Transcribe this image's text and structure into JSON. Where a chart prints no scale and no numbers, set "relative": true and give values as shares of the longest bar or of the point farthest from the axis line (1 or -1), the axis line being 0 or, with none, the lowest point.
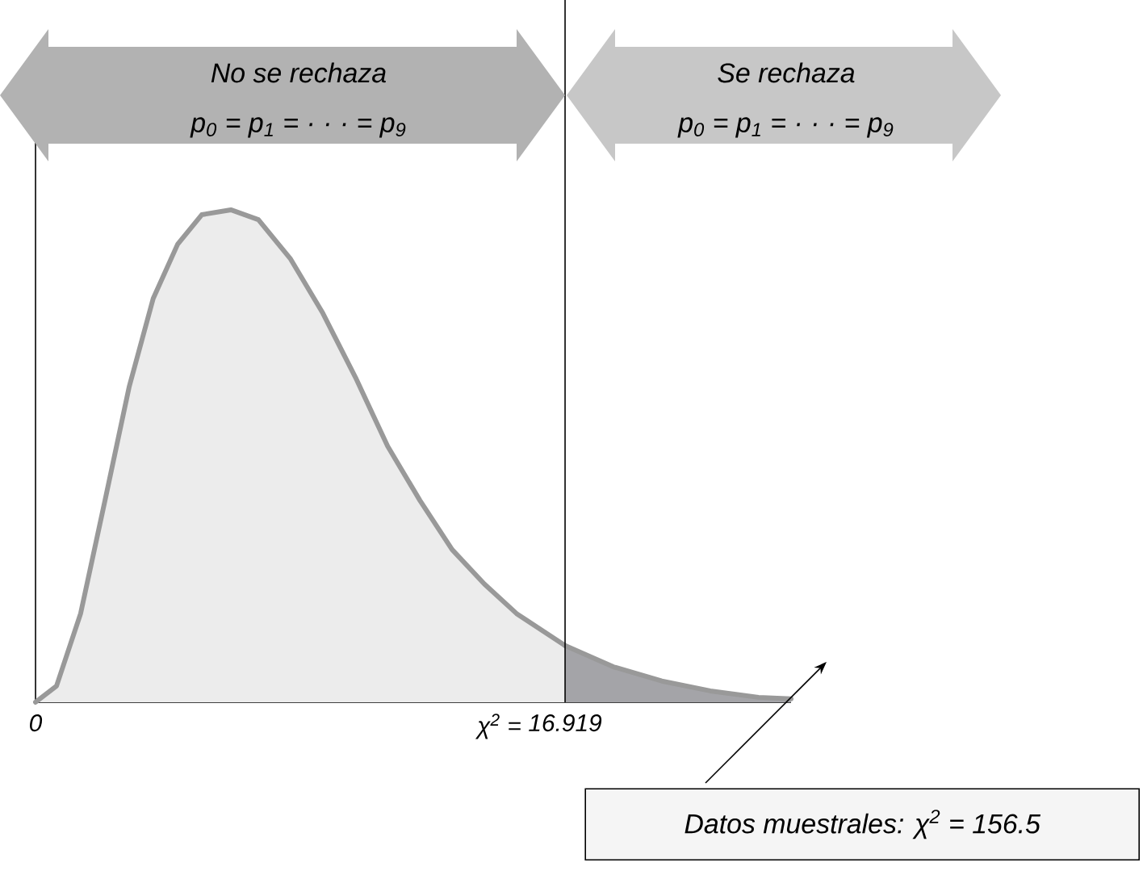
{
  "chart_data": {
    "type": "area",
    "relative": true,
    "series": [
      {
        "color": "#ececec",
        "x": [
          0,
          0.67,
          1.44,
          2.22,
          2.99,
          3.76,
          4.54,
          5.31,
          6.24,
          7.12,
          8.15,
          9.18,
          10.22,
          11.25,
          12.28,
          13.31,
          14.34,
          15.37,
          16.919
        ],
        "values": [
          0,
          0.033,
          0.18,
          0.41,
          0.64,
          0.82,
          0.93,
          0.99,
          1,
          0.98,
          0.9,
          0.79,
          0.66,
          0.52,
          0.41,
          0.31,
          0.24,
          0.18,
          0.115
        ]
      },
      {
        "color": "#a4a4a8",
        "x": [
          16.919,
          18.46,
          20.01,
          21.56,
          23.1,
          24.14
        ],
        "values": [
          0.115,
          0.072,
          0.043,
          0.023,
          0.01,
          0.007
        ]
      }
    ],
    "xlim": [
      0,
      24.14
    ],
    "xticks": [
      0,
      16.919
    ],
    "tick_labels": "x",
    "ref_lines": [
      {
        "axis": "x",
        "value": 16.919,
        "label": "χ$^{2}$ ="
      }
    ],
    "annotations": [
      "No se rechaza",
      "p$_{0}$ = p$_{1}$ = · · · = p$_{9}$",
      "Se rechaza",
      "p$_{0}$ = p$_{1}$ = · · · = p$_{9}$",
      "Datos muestrales: χ$^{2}$ = 156.5"
    ]
  }
}
